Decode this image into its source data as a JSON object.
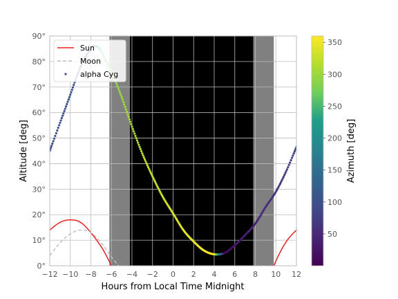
{
  "chart_data": {
    "type": "line",
    "xlabel": "Hours from Local Time Midnight",
    "ylabel": "Altitude [deg]",
    "xlim": [
      -12,
      12
    ],
    "ylim": [
      0,
      90
    ],
    "x_ticks": [
      -12,
      -10,
      -8,
      -6,
      -4,
      -2,
      0,
      2,
      4,
      6,
      8,
      10,
      12
    ],
    "x_tick_labels": [
      "−12",
      "−10",
      "−8",
      "−6",
      "−4",
      "−2",
      "0",
      "2",
      "4",
      "6",
      "8",
      "10",
      "12"
    ],
    "y_ticks": [
      0,
      10,
      20,
      30,
      40,
      50,
      60,
      70,
      80,
      90
    ],
    "y_tick_labels": [
      "0°",
      "10°",
      "20°",
      "30°",
      "40°",
      "50°",
      "60°",
      "70°",
      "80°",
      "90°"
    ],
    "grid": true,
    "legend_position": "top-left",
    "twilight_bands": [
      {
        "from": -6.2,
        "to": -4.2,
        "color": "#808080"
      },
      {
        "from": -4.2,
        "to": 7.8,
        "color": "#000000"
      },
      {
        "from": 7.8,
        "to": 9.8,
        "color": "#808080"
      }
    ],
    "series": [
      {
        "name": "Sun",
        "style": "solid",
        "color": "#e8201e",
        "segments": [
          [
            [
              -12,
              14
            ],
            [
              -11,
              17
            ],
            [
              -10,
              18
            ],
            [
              -9,
              17
            ],
            [
              -8,
              13
            ],
            [
              -7,
              7.5
            ],
            [
              -6.5,
              4
            ],
            [
              -6,
              0
            ]
          ],
          [
            [
              9.8,
              0
            ],
            [
              10.5,
              6
            ],
            [
              11.2,
              10.5
            ],
            [
              12,
              14
            ]
          ]
        ]
      },
      {
        "name": "Moon",
        "style": "dashed",
        "color": "#c0c0c0",
        "segments": [
          [
            [
              -12,
              4
            ],
            [
              -11,
              9
            ],
            [
              -10,
              12.5
            ],
            [
              -9,
              14
            ],
            [
              -8,
              13
            ],
            [
              -7,
              9
            ],
            [
              -6,
              3.5
            ],
            [
              -5.3,
              0
            ]
          ]
        ]
      },
      {
        "name": "alpha Cyg",
        "style": "points-colormap",
        "points": [
          [
            -12,
            45,
            100
          ],
          [
            -11,
            56,
            100
          ],
          [
            -10,
            67,
            99
          ],
          [
            -9,
            78,
            98
          ],
          [
            -8,
            85,
            96
          ],
          [
            -7.5,
            86,
            150
          ],
          [
            -7,
            84,
            260
          ],
          [
            -6,
            76,
            290
          ],
          [
            -5,
            66,
            300
          ],
          [
            -4,
            54.5,
            310
          ],
          [
            -3,
            44,
            318
          ],
          [
            -2,
            35,
            325
          ],
          [
            -1,
            27,
            330
          ],
          [
            0,
            20.5,
            335
          ],
          [
            1,
            14,
            342
          ],
          [
            2,
            9.5,
            348
          ],
          [
            3,
            6,
            355
          ],
          [
            4,
            4.5,
            359
          ],
          [
            5,
            5,
            10
          ],
          [
            6,
            8,
            25
          ],
          [
            7,
            12,
            35
          ],
          [
            8,
            16.5,
            45
          ],
          [
            9,
            23,
            55
          ],
          [
            10,
            29,
            62
          ],
          [
            11,
            37,
            75
          ],
          [
            12,
            46.5,
            88
          ]
        ]
      }
    ],
    "colorbar": {
      "label": "Azimuth [deg]",
      "colormap": "viridis",
      "range": [
        0,
        360
      ],
      "ticks": [
        50,
        100,
        150,
        200,
        250,
        300,
        350
      ],
      "tick_labels": [
        "50",
        "100",
        "150",
        "200",
        "250",
        "300",
        "350"
      ]
    }
  }
}
